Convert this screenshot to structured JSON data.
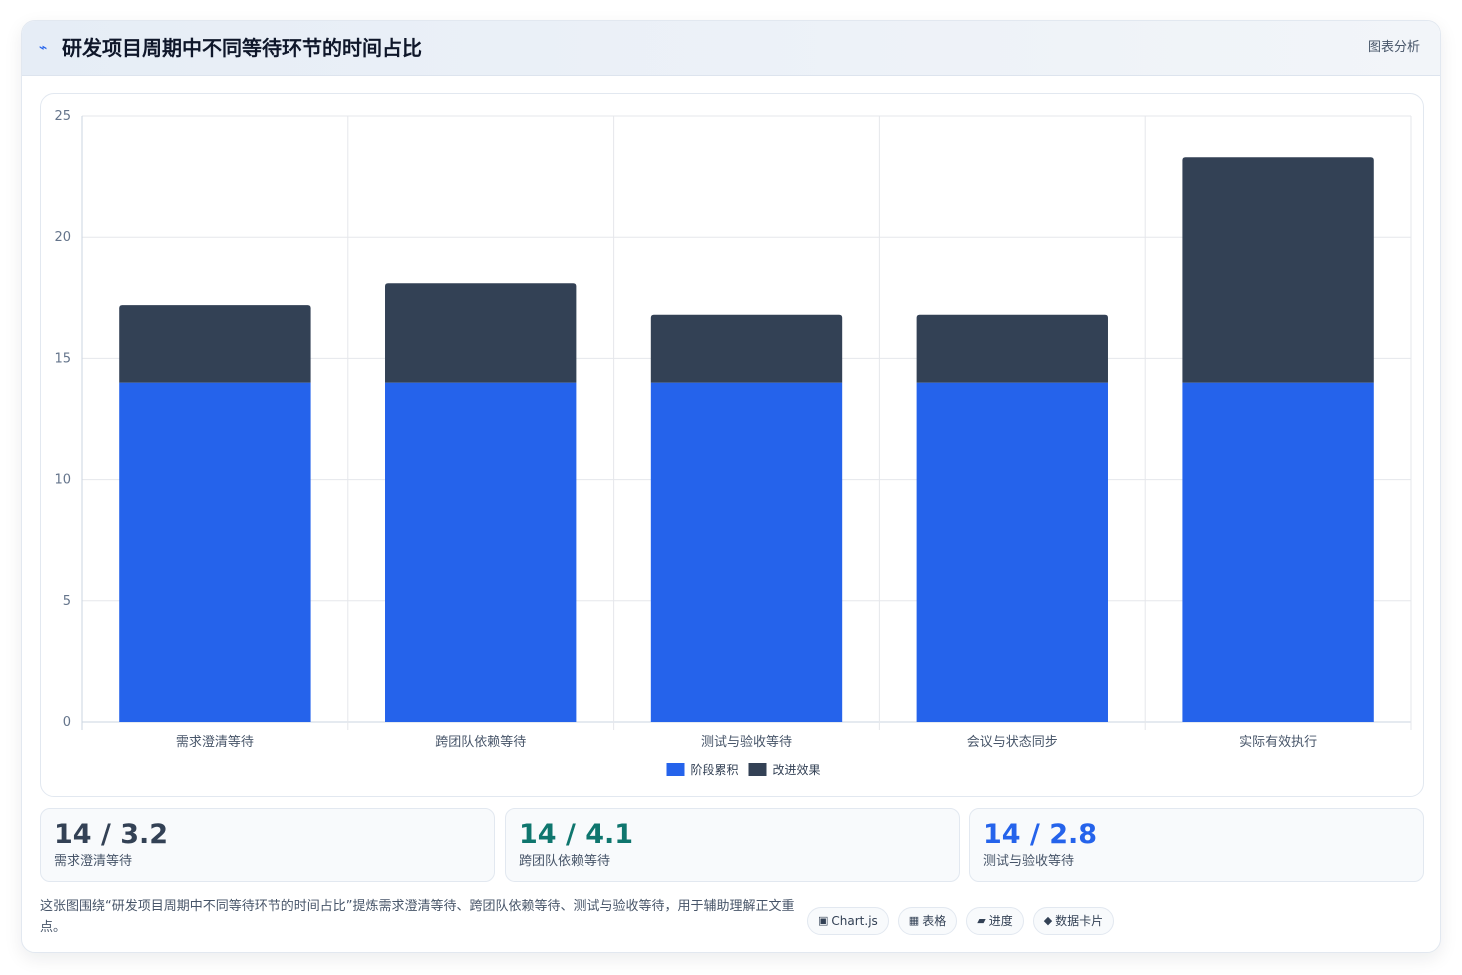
{
  "header": {
    "title": "研发项目周期中不同等待环节的时间占比",
    "action_label": "图表分析",
    "icon": "lightning-icon"
  },
  "chart_data": {
    "type": "bar",
    "stacked": true,
    "title": "",
    "xlabel": "",
    "ylabel": "",
    "categories": [
      "需求澄清等待",
      "跨团队依赖等待",
      "测试与验收等待",
      "会议与状态同步",
      "实际有效执行"
    ],
    "series": [
      {
        "name": "阶段累积",
        "color": "#2563eb",
        "values": [
          14,
          14,
          14,
          14,
          14
        ]
      },
      {
        "name": "改进效果",
        "color": "#334155",
        "values": [
          3.2,
          4.1,
          2.8,
          2.8,
          9.3
        ]
      }
    ],
    "ylim": [
      0,
      25
    ],
    "yticks": [
      0,
      5,
      10,
      15,
      20,
      25
    ],
    "grid": true,
    "legend_position": "bottom-center"
  },
  "stats": [
    {
      "value": "14 / 3.2",
      "label": "需求澄清等待",
      "color": "#334155"
    },
    {
      "value": "14 / 4.1",
      "label": "跨团队依赖等待",
      "color": "#0f766e"
    },
    {
      "value": "14 / 2.8",
      "label": "测试与验收等待",
      "color": "#2563eb"
    }
  ],
  "description": "这张图围绕“研发项目周期中不同等待环节的时间占比”提炼需求澄清等待、跨团队依赖等待、测试与验收等待，用于辅助理解正文重点。",
  "tags": [
    {
      "icon": "▣",
      "label": "Chart.js"
    },
    {
      "icon": "▦",
      "label": "表格"
    },
    {
      "icon": "▰",
      "label": "进度"
    },
    {
      "icon": "◆",
      "label": "数据卡片"
    }
  ]
}
